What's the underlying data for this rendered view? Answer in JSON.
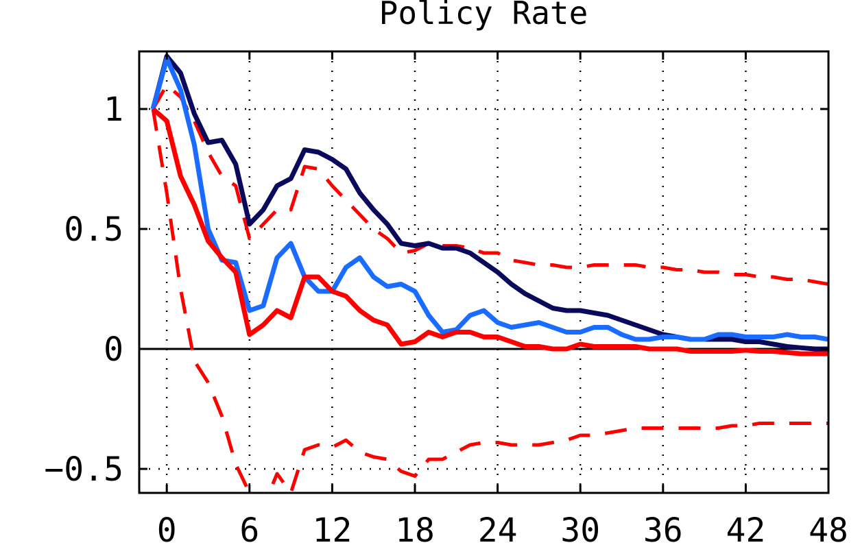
{
  "chart_data": {
    "type": "line",
    "title": "Policy Rate",
    "xlabel": "",
    "ylabel": "",
    "xlim": [
      -2,
      48
    ],
    "ylim": [
      -0.6,
      1.24
    ],
    "grid": true,
    "x_ticks": [
      0,
      6,
      12,
      18,
      24,
      30,
      36,
      42,
      48
    ],
    "x_tick_labels": [
      "0",
      "6",
      "12",
      "18",
      "24",
      "30",
      "36",
      "42",
      "48"
    ],
    "y_ticks": [
      1,
      0.5,
      0,
      -0.5
    ],
    "y_tick_labels": [
      "1",
      "0.5",
      "0",
      "−0.5"
    ],
    "zero_line": true,
    "x": [
      -1,
      0,
      1,
      2,
      3,
      4,
      5,
      6,
      7,
      8,
      9,
      10,
      11,
      12,
      13,
      14,
      15,
      16,
      17,
      18,
      19,
      20,
      21,
      22,
      23,
      24,
      25,
      26,
      27,
      28,
      29,
      30,
      31,
      32,
      33,
      34,
      35,
      36,
      37,
      38,
      39,
      40,
      41,
      42,
      43,
      44,
      45,
      46,
      47,
      48
    ],
    "series": [
      {
        "color": "#0a0a5c",
        "style": "solid",
        "values": [
          1.0,
          1.22,
          1.15,
          0.98,
          0.86,
          0.87,
          0.77,
          0.52,
          0.58,
          0.68,
          0.71,
          0.83,
          0.82,
          0.79,
          0.75,
          0.65,
          0.58,
          0.52,
          0.44,
          0.43,
          0.44,
          0.42,
          0.42,
          0.4,
          0.36,
          0.32,
          0.27,
          0.23,
          0.2,
          0.17,
          0.16,
          0.16,
          0.15,
          0.14,
          0.12,
          0.1,
          0.08,
          0.06,
          0.05,
          0.04,
          0.04,
          0.04,
          0.04,
          0.03,
          0.03,
          0.02,
          0.01,
          0.005,
          0.0,
          0.0
        ]
      },
      {
        "color": "#1a6cff",
        "style": "solid",
        "values": [
          1.0,
          1.21,
          1.08,
          0.85,
          0.5,
          0.37,
          0.36,
          0.16,
          0.18,
          0.38,
          0.44,
          0.3,
          0.24,
          0.24,
          0.34,
          0.38,
          0.3,
          0.26,
          0.27,
          0.24,
          0.14,
          0.07,
          0.08,
          0.14,
          0.16,
          0.11,
          0.09,
          0.1,
          0.11,
          0.09,
          0.07,
          0.07,
          0.09,
          0.09,
          0.06,
          0.04,
          0.04,
          0.05,
          0.05,
          0.04,
          0.04,
          0.06,
          0.06,
          0.05,
          0.05,
          0.05,
          0.06,
          0.05,
          0.05,
          0.04
        ]
      },
      {
        "color": "#ff0000",
        "style": "solid",
        "values": [
          1.0,
          0.95,
          0.72,
          0.6,
          0.45,
          0.38,
          0.32,
          0.06,
          0.1,
          0.16,
          0.13,
          0.3,
          0.3,
          0.24,
          0.22,
          0.16,
          0.12,
          0.1,
          0.02,
          0.03,
          0.07,
          0.05,
          0.07,
          0.07,
          0.05,
          0.05,
          0.03,
          0.01,
          0.01,
          0.0,
          0.0,
          0.02,
          0.01,
          0.01,
          0.01,
          0.01,
          0.0,
          0.0,
          0.0,
          -0.01,
          -0.01,
          -0.01,
          -0.01,
          -0.005,
          -0.01,
          -0.01,
          -0.015,
          -0.02,
          -0.02,
          -0.02
        ]
      },
      {
        "color": "#ff0000",
        "style": "dashed",
        "values": [
          1.0,
          1.1,
          1.05,
          0.95,
          0.82,
          0.72,
          0.68,
          0.46,
          0.52,
          0.58,
          0.58,
          0.76,
          0.75,
          0.68,
          0.62,
          0.56,
          0.5,
          0.46,
          0.4,
          0.41,
          0.44,
          0.43,
          0.43,
          0.42,
          0.4,
          0.4,
          0.37,
          0.36,
          0.35,
          0.35,
          0.34,
          0.34,
          0.35,
          0.35,
          0.35,
          0.35,
          0.34,
          0.34,
          0.33,
          0.33,
          0.32,
          0.32,
          0.31,
          0.31,
          0.3,
          0.3,
          0.29,
          0.29,
          0.28,
          0.27
        ]
      },
      {
        "color": "#ff0000",
        "style": "dashed",
        "values": [
          1.0,
          0.65,
          0.25,
          -0.05,
          -0.14,
          -0.28,
          -0.48,
          -0.6,
          -0.66,
          -0.52,
          -0.6,
          -0.42,
          -0.4,
          -0.41,
          -0.38,
          -0.43,
          -0.45,
          -0.46,
          -0.51,
          -0.53,
          -0.46,
          -0.46,
          -0.43,
          -0.4,
          -0.39,
          -0.39,
          -0.4,
          -0.4,
          -0.4,
          -0.39,
          -0.38,
          -0.36,
          -0.36,
          -0.35,
          -0.34,
          -0.33,
          -0.33,
          -0.33,
          -0.33,
          -0.33,
          -0.33,
          -0.33,
          -0.32,
          -0.32,
          -0.31,
          -0.31,
          -0.31,
          -0.31,
          -0.31,
          -0.31
        ]
      }
    ]
  }
}
